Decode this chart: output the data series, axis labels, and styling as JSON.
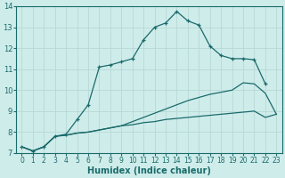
{
  "xlabel": "Humidex (Indice chaleur)",
  "xlim": [
    -0.5,
    23.5
  ],
  "ylim": [
    7,
    14
  ],
  "xticks": [
    0,
    1,
    2,
    3,
    4,
    5,
    6,
    7,
    8,
    9,
    10,
    11,
    12,
    13,
    14,
    15,
    16,
    17,
    18,
    19,
    20,
    21,
    22,
    23
  ],
  "yticks": [
    7,
    8,
    9,
    10,
    11,
    12,
    13,
    14
  ],
  "bg_color": "#ceecea",
  "line_color": "#1a6b6b",
  "grid_color": "#b8d8d6",
  "lines": [
    {
      "x": [
        0,
        1,
        2,
        3,
        4,
        5,
        6,
        7,
        8,
        9,
        10,
        11,
        12,
        13,
        14,
        15,
        16,
        17,
        18,
        19,
        20,
        21,
        22,
        23
      ],
      "y": [
        7.3,
        7.1,
        7.3,
        7.8,
        7.85,
        7.95,
        8.0,
        8.1,
        8.2,
        8.3,
        8.35,
        8.45,
        8.5,
        8.6,
        8.65,
        8.7,
        8.75,
        8.8,
        8.85,
        8.9,
        8.95,
        9.0,
        8.7,
        8.85
      ],
      "marker": false
    },
    {
      "x": [
        0,
        1,
        2,
        3,
        4,
        5,
        6,
        7,
        8,
        9,
        10,
        11,
        12,
        13,
        14,
        15,
        16,
        17,
        18,
        19,
        20,
        21,
        22,
        23
      ],
      "y": [
        7.3,
        7.1,
        7.3,
        7.8,
        7.85,
        7.95,
        8.0,
        8.1,
        8.2,
        8.3,
        8.5,
        8.7,
        8.9,
        9.1,
        9.3,
        9.5,
        9.65,
        9.8,
        9.9,
        10.0,
        10.35,
        10.3,
        9.85,
        8.85
      ],
      "marker": false
    },
    {
      "x": [
        0,
        1,
        2,
        3,
        4,
        5,
        6,
        7,
        8,
        9,
        10,
        11,
        12,
        13,
        14,
        15,
        16,
        17,
        18,
        19,
        20,
        21,
        22
      ],
      "y": [
        7.3,
        7.1,
        7.3,
        7.8,
        7.9,
        8.6,
        9.3,
        11.1,
        11.2,
        11.35,
        11.5,
        12.4,
        13.0,
        13.2,
        13.75,
        13.3,
        13.1,
        12.1,
        11.65,
        11.5,
        11.5,
        11.45,
        10.3
      ],
      "marker": true
    }
  ]
}
